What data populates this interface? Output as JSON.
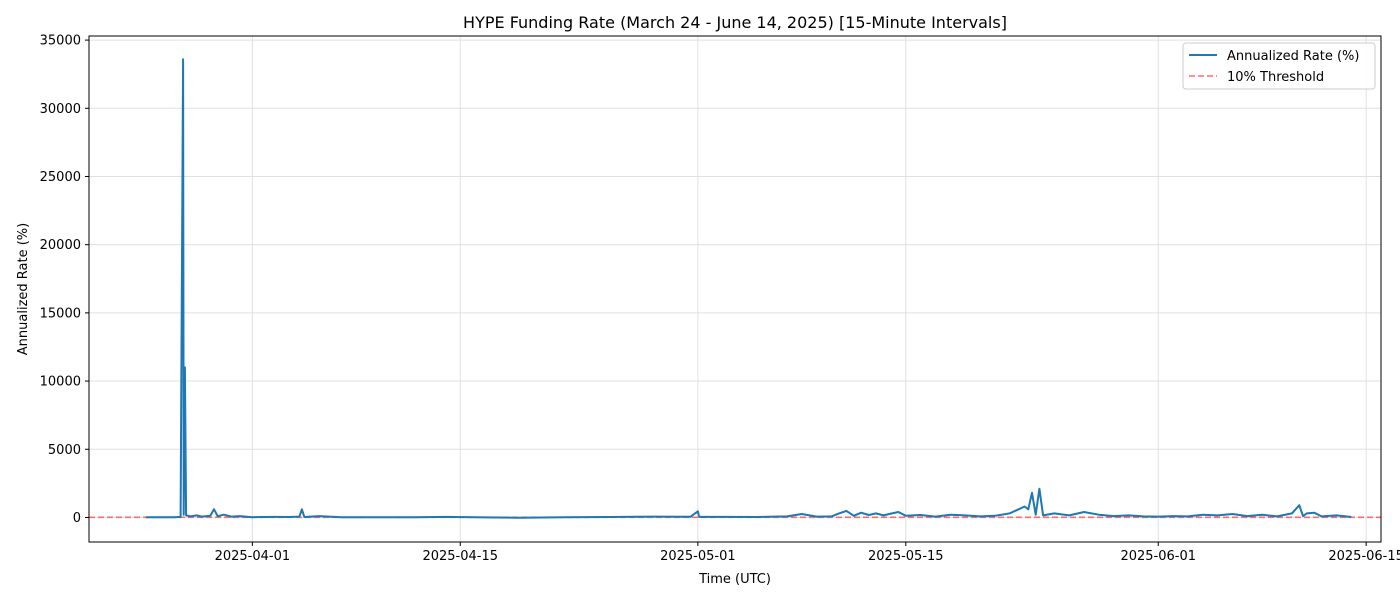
{
  "chart_data": {
    "type": "line",
    "title": "HYPE Funding Rate (March 24 - June 14, 2025) [15-Minute Intervals]",
    "xlabel": "Time (UTC)",
    "ylabel": "Annualized Rate (%)",
    "x_range": [
      "2025-03-21",
      "2025-06-16"
    ],
    "ylim": [
      -1800,
      35300
    ],
    "x_ticks": [
      "2025-04-01",
      "2025-04-15",
      "2025-05-01",
      "2025-05-15",
      "2025-06-01",
      "2025-06-15"
    ],
    "y_ticks": [
      0,
      5000,
      10000,
      15000,
      20000,
      25000,
      30000,
      35000
    ],
    "grid": true,
    "legend_position": "top-right",
    "colors": {
      "series": "#1f77b4",
      "threshold": "#ff6b6b"
    },
    "series": [
      {
        "name": "Annualized Rate (%)",
        "style": "solid",
        "points": [
          [
            "2025-03-24 20:00",
            10
          ],
          [
            "2025-03-25 12:00",
            12
          ],
          [
            "2025-03-26 06:00",
            8
          ],
          [
            "2025-03-26 18:00",
            15
          ],
          [
            "2025-03-27 04:00",
            40
          ],
          [
            "2025-03-27 08:00",
            33600
          ],
          [
            "2025-03-27 09:00",
            200
          ],
          [
            "2025-03-27 11:00",
            11000
          ],
          [
            "2025-03-27 13:00",
            150
          ],
          [
            "2025-03-27 20:00",
            80
          ],
          [
            "2025-03-28 06:00",
            150
          ],
          [
            "2025-03-28 14:00",
            60
          ],
          [
            "2025-03-29 04:00",
            120
          ],
          [
            "2025-03-29 10:00",
            600
          ],
          [
            "2025-03-29 16:00",
            90
          ],
          [
            "2025-03-30 02:00",
            200
          ],
          [
            "2025-03-30 14:00",
            60
          ],
          [
            "2025-03-31 04:00",
            100
          ],
          [
            "2025-04-01 00:00",
            20
          ],
          [
            "2025-04-02 12:00",
            40
          ],
          [
            "2025-04-03 12:00",
            30
          ],
          [
            "2025-04-04 04:00",
            60
          ],
          [
            "2025-04-04 08:00",
            600
          ],
          [
            "2025-04-04 12:00",
            30
          ],
          [
            "2025-04-05 12:00",
            100
          ],
          [
            "2025-04-07 00:00",
            20
          ],
          [
            "2025-04-09 00:00",
            15
          ],
          [
            "2025-04-12 00:00",
            10
          ],
          [
            "2025-04-14 00:00",
            40
          ],
          [
            "2025-04-16 00:00",
            10
          ],
          [
            "2025-04-19 00:00",
            -20
          ],
          [
            "2025-04-22 00:00",
            20
          ],
          [
            "2025-04-25 00:00",
            30
          ],
          [
            "2025-04-28 00:00",
            60
          ],
          [
            "2025-04-30 12:00",
            50
          ],
          [
            "2025-05-01 00:00",
            450
          ],
          [
            "2025-05-01 02:00",
            40
          ],
          [
            "2025-05-03 00:00",
            40
          ],
          [
            "2025-05-05 00:00",
            30
          ],
          [
            "2025-05-07 00:00",
            80
          ],
          [
            "2025-05-08 00:00",
            250
          ],
          [
            "2025-05-09 00:00",
            60
          ],
          [
            "2025-05-10 00:00",
            80
          ],
          [
            "2025-05-10 12:00",
            300
          ],
          [
            "2025-05-11 00:00",
            480
          ],
          [
            "2025-05-11 12:00",
            120
          ],
          [
            "2025-05-12 00:00",
            350
          ],
          [
            "2025-05-12 12:00",
            180
          ],
          [
            "2025-05-13 00:00",
            300
          ],
          [
            "2025-05-13 12:00",
            150
          ],
          [
            "2025-05-14 00:00",
            280
          ],
          [
            "2025-05-14 12:00",
            400
          ],
          [
            "2025-05-15 00:00",
            120
          ],
          [
            "2025-05-16 00:00",
            180
          ],
          [
            "2025-05-17 00:00",
            60
          ],
          [
            "2025-05-18 00:00",
            200
          ],
          [
            "2025-05-19 00:00",
            150
          ],
          [
            "2025-05-20 00:00",
            80
          ],
          [
            "2025-05-21 00:00",
            120
          ],
          [
            "2025-05-22 00:00",
            300
          ],
          [
            "2025-05-23 00:00",
            800
          ],
          [
            "2025-05-23 06:00",
            600
          ],
          [
            "2025-05-23 12:00",
            1800
          ],
          [
            "2025-05-23 18:00",
            200
          ],
          [
            "2025-05-24 00:00",
            2100
          ],
          [
            "2025-05-24 06:00",
            150
          ],
          [
            "2025-05-25 00:00",
            300
          ],
          [
            "2025-05-26 00:00",
            150
          ],
          [
            "2025-05-27 00:00",
            400
          ],
          [
            "2025-05-28 00:00",
            200
          ],
          [
            "2025-05-29 00:00",
            100
          ],
          [
            "2025-05-30 00:00",
            150
          ],
          [
            "2025-05-31 00:00",
            80
          ],
          [
            "2025-06-01 00:00",
            60
          ],
          [
            "2025-06-02 00:00",
            100
          ],
          [
            "2025-06-03 00:00",
            80
          ],
          [
            "2025-06-04 00:00",
            200
          ],
          [
            "2025-06-05 00:00",
            150
          ],
          [
            "2025-06-06 00:00",
            250
          ],
          [
            "2025-06-07 00:00",
            100
          ],
          [
            "2025-06-08 00:00",
            200
          ],
          [
            "2025-06-09 00:00",
            80
          ],
          [
            "2025-06-10 00:00",
            300
          ],
          [
            "2025-06-10 12:00",
            900
          ],
          [
            "2025-06-10 18:00",
            100
          ],
          [
            "2025-06-11 00:00",
            300
          ],
          [
            "2025-06-11 12:00",
            350
          ],
          [
            "2025-06-12 00:00",
            80
          ],
          [
            "2025-06-13 00:00",
            150
          ],
          [
            "2025-06-14 00:00",
            30
          ]
        ]
      },
      {
        "name": "10% Threshold",
        "style": "dashed",
        "value": 10
      }
    ]
  }
}
